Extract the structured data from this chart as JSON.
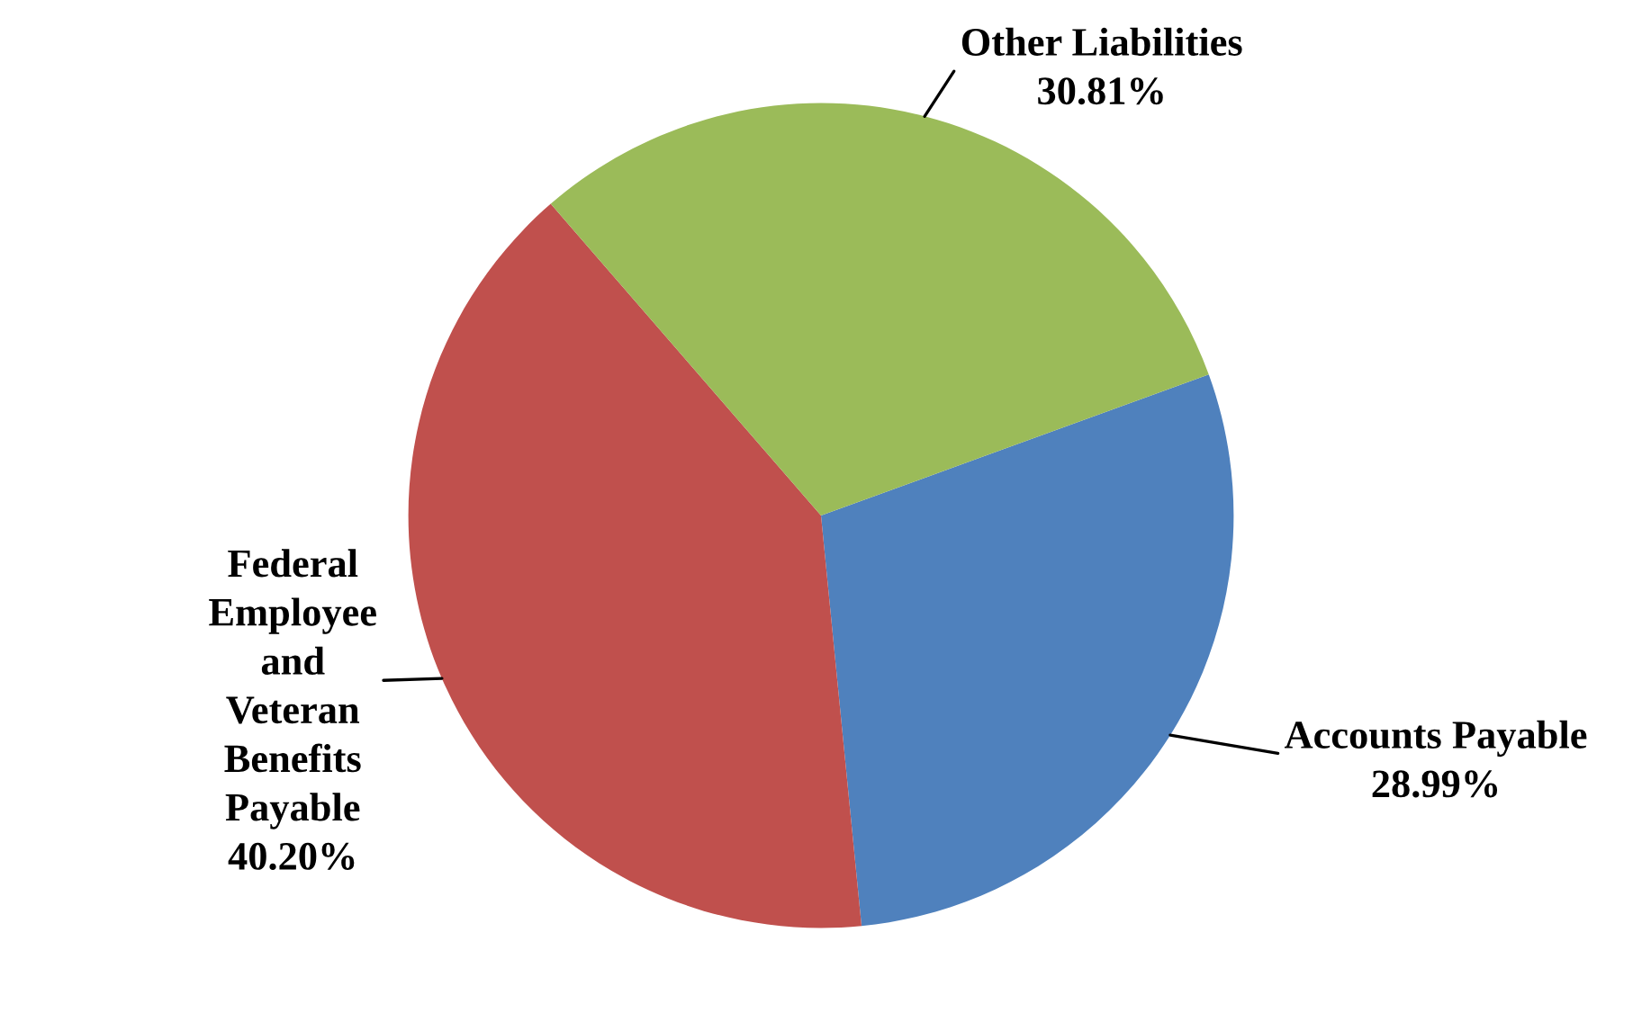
{
  "chart_data": {
    "type": "pie",
    "categories": [
      "Accounts Payable",
      "Federal\nEmployee\nand\nVeteran\nBenefits\nPayable",
      "Other Liabilities"
    ],
    "values": [
      28.99,
      40.2,
      30.81
    ],
    "value_labels": [
      "28.99%",
      "40.20%",
      "30.81%"
    ],
    "colors": [
      "#4f81bd",
      "#c0504d",
      "#9bbb59"
    ],
    "legend": false
  }
}
